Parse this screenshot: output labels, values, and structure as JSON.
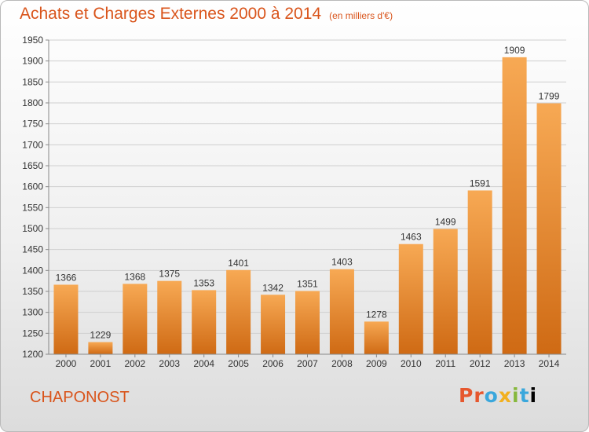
{
  "header": {
    "title": "Achats et Charges Externes 2000 à 2014",
    "subtitle": "(en milliers d'€)"
  },
  "commune": "CHAPONOST",
  "logo": {
    "letters": [
      "P",
      "r",
      "o",
      "x",
      "i",
      "t",
      "i"
    ]
  },
  "colors": {
    "bar_light": "#f7a954",
    "bar_dark": "#cf6a14",
    "title": "#d9541b"
  },
  "chart_data": {
    "type": "bar",
    "title": "Achats et Charges Externes 2000 à 2014",
    "subtitle": "(en milliers d'€)",
    "xlabel": "",
    "ylabel": "",
    "categories": [
      "2000",
      "2001",
      "2002",
      "2003",
      "2004",
      "2005",
      "2006",
      "2007",
      "2008",
      "2009",
      "2010",
      "2011",
      "2012",
      "2013",
      "2014"
    ],
    "values": [
      1366,
      1229,
      1368,
      1375,
      1353,
      1401,
      1342,
      1351,
      1403,
      1278,
      1463,
      1499,
      1591,
      1909,
      1799
    ],
    "ylim": [
      1200,
      1950
    ],
    "yticks": [
      1200,
      1250,
      1300,
      1350,
      1400,
      1450,
      1500,
      1550,
      1600,
      1650,
      1700,
      1750,
      1800,
      1850,
      1900,
      1950
    ],
    "grid": true,
    "legend": "none"
  }
}
